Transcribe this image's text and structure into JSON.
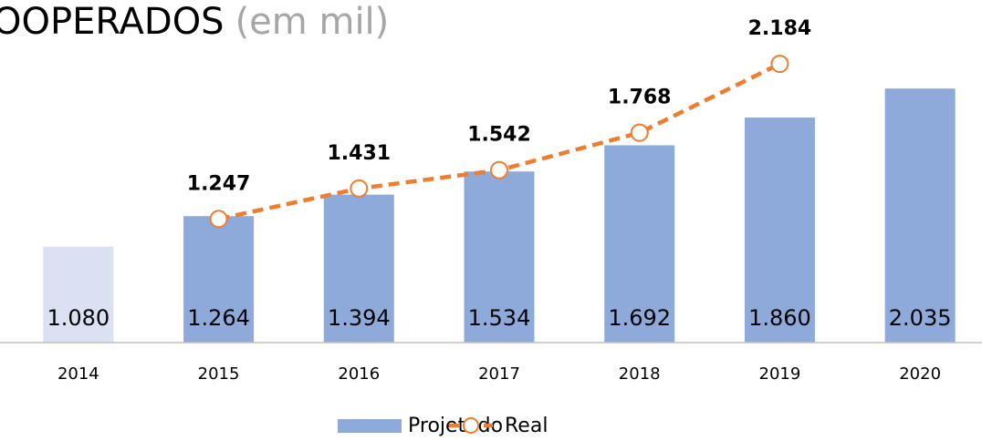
{
  "chart_data": {
    "type": "bar-line",
    "title": "OOPERADOS",
    "title_unit": "(em mil)",
    "categories": [
      "2014",
      "2015",
      "2016",
      "2017",
      "2018",
      "2019",
      "2020"
    ],
    "series": [
      {
        "name": "Projetado",
        "type": "bar",
        "color": "#8eaadb",
        "colors": [
          "#d9e1f2",
          "#8eaadb",
          "#8eaadb",
          "#8eaadb",
          "#8eaadb",
          "#8eaadb",
          "#8eaadb"
        ],
        "values": [
          1080,
          1264,
          1394,
          1534,
          1692,
          1860,
          2035
        ],
        "value_labels": [
          "1.080",
          "1.264",
          "1.394",
          "1.534",
          "1.692",
          "1.860",
          "2.035"
        ]
      },
      {
        "name": "Real",
        "type": "line",
        "color": "#ed7d31",
        "values": [
          null,
          1247,
          1431,
          1542,
          1768,
          2184,
          null
        ],
        "value_labels": [
          null,
          "1.247",
          "1.431",
          "1.542",
          "1.768",
          "2.184",
          null
        ]
      }
    ],
    "ylim": [
      500,
      2570
    ],
    "legend": "bottom"
  }
}
